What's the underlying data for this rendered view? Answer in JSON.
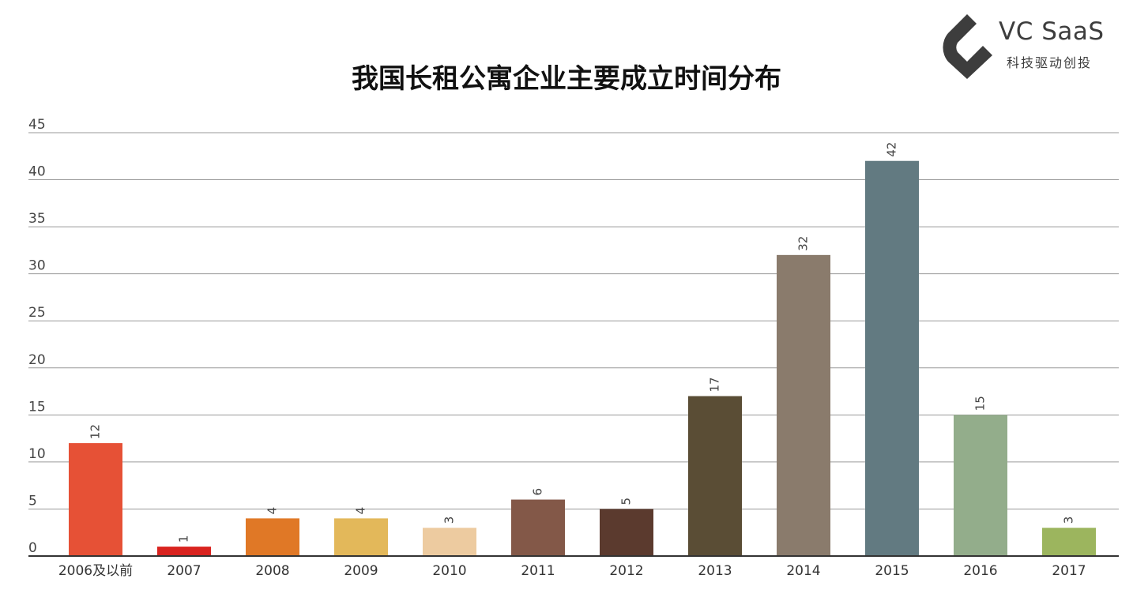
{
  "brand": {
    "name": "VC SaaS",
    "tagline": "科技驱动创投",
    "color": "#3d3d3d"
  },
  "chart_data": {
    "type": "bar",
    "title": "我国长租公寓企业主要成立时间分布",
    "xlabel": "",
    "ylabel": "",
    "categories": [
      "2006及以前",
      "2007",
      "2008",
      "2009",
      "2010",
      "2011",
      "2012",
      "2013",
      "2014",
      "2015",
      "2016",
      "2017"
    ],
    "values": [
      12,
      1,
      4,
      4,
      3,
      6,
      5,
      17,
      32,
      42,
      15,
      3
    ],
    "colors": [
      "#e65136",
      "#d9231f",
      "#e07826",
      "#e3b85a",
      "#edcba0",
      "#835848",
      "#5b3a2e",
      "#5a4d35",
      "#8a7b6c",
      "#627a81",
      "#93ad8b",
      "#9cb55e"
    ],
    "ylim": [
      0,
      45
    ],
    "yticks": [
      0,
      5,
      10,
      15,
      20,
      25,
      30,
      35,
      40,
      45
    ],
    "grid": true,
    "legend": "none",
    "data_labels": true
  }
}
